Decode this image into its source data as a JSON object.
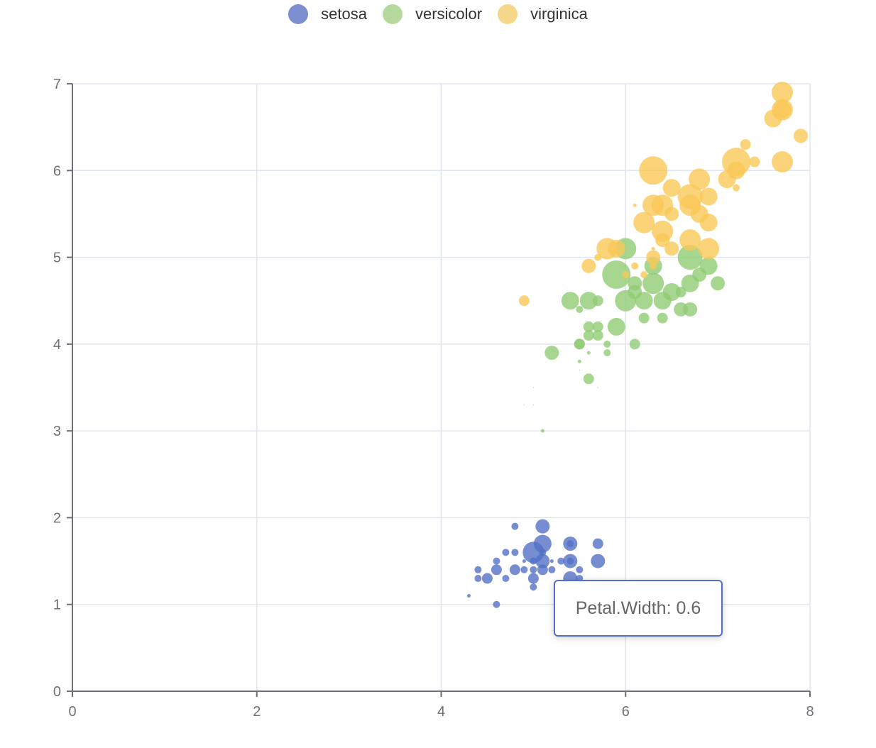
{
  "legend": {
    "items": [
      {
        "label": "setosa",
        "color": "#7d8fd0"
      },
      {
        "label": "versicolor",
        "color": "#b5d99c"
      },
      {
        "label": "virginica",
        "color": "#f6d68a"
      }
    ]
  },
  "tooltip": {
    "text": "Petal.Width: 0.6"
  },
  "chart_data": {
    "type": "scatter",
    "title": "",
    "xlabel": "",
    "ylabel": "",
    "xlim": [
      0,
      8
    ],
    "ylim": [
      0,
      7
    ],
    "x_ticks": [
      "0",
      "2",
      "4",
      "6",
      "8"
    ],
    "y_ticks": [
      "0",
      "1",
      "2",
      "3",
      "4",
      "5",
      "6",
      "7"
    ],
    "grid": true,
    "legend_position": "top-center",
    "size_dimension": "Petal.Width",
    "series": [
      {
        "name": "setosa",
        "color": "#5470c6",
        "points": [
          [
            4.3,
            1.1,
            0.1
          ],
          [
            4.4,
            1.3,
            0.2
          ],
          [
            4.4,
            1.4,
            0.2
          ],
          [
            4.5,
            1.3,
            0.3
          ],
          [
            4.6,
            1.0,
            0.2
          ],
          [
            4.6,
            1.4,
            0.3
          ],
          [
            4.6,
            1.5,
            0.2
          ],
          [
            4.7,
            1.3,
            0.2
          ],
          [
            4.7,
            1.6,
            0.2
          ],
          [
            4.8,
            1.4,
            0.3
          ],
          [
            4.8,
            1.6,
            0.2
          ],
          [
            4.8,
            1.9,
            0.2
          ],
          [
            4.9,
            1.4,
            0.2
          ],
          [
            4.9,
            1.5,
            0.1
          ],
          [
            5.0,
            1.2,
            0.2
          ],
          [
            5.0,
            1.3,
            0.3
          ],
          [
            5.0,
            1.4,
            0.2
          ],
          [
            5.0,
            1.6,
            0.6
          ],
          [
            5.0,
            1.5,
            0.2
          ],
          [
            5.1,
            1.4,
            0.3
          ],
          [
            5.1,
            1.5,
            0.4
          ],
          [
            5.1,
            1.7,
            0.5
          ],
          [
            5.1,
            1.9,
            0.4
          ],
          [
            5.1,
            1.6,
            0.2
          ],
          [
            5.2,
            1.4,
            0.2
          ],
          [
            5.2,
            1.5,
            0.1
          ],
          [
            5.3,
            1.5,
            0.2
          ],
          [
            5.4,
            1.3,
            0.4
          ],
          [
            5.4,
            1.5,
            0.4
          ],
          [
            5.4,
            1.7,
            0.4
          ],
          [
            5.4,
            1.7,
            0.2
          ],
          [
            5.4,
            1.5,
            0.2
          ],
          [
            5.5,
            1.3,
            0.2
          ],
          [
            5.5,
            1.4,
            0.2
          ],
          [
            5.7,
            1.5,
            0.4
          ],
          [
            5.7,
            1.7,
            0.3
          ],
          [
            5.8,
            1.2,
            0.2
          ]
        ]
      },
      {
        "name": "versicolor",
        "color": "#91cc75",
        "points": [
          [
            4.9,
            3.3,
            0.0
          ],
          [
            5.0,
            3.3,
            0.0
          ],
          [
            5.0,
            3.5,
            0.0
          ],
          [
            5.1,
            3.0,
            0.1
          ],
          [
            5.5,
            3.7,
            0.0
          ],
          [
            5.5,
            3.8,
            0.1
          ],
          [
            5.2,
            3.9,
            0.4
          ],
          [
            5.6,
            3.6,
            0.3
          ],
          [
            5.7,
            3.5,
            0.0
          ],
          [
            5.8,
            3.9,
            0.2
          ],
          [
            5.5,
            4.0,
            0.3
          ],
          [
            5.5,
            4.0,
            0.3
          ],
          [
            5.6,
            3.9,
            0.1
          ],
          [
            5.8,
            4.0,
            0.2
          ],
          [
            6.1,
            4.0,
            0.3
          ],
          [
            5.6,
            4.1,
            0.3
          ],
          [
            5.7,
            4.1,
            0.3
          ],
          [
            5.6,
            4.2,
            0.3
          ],
          [
            5.7,
            4.2,
            0.3
          ],
          [
            5.9,
            4.2,
            0.5
          ],
          [
            6.2,
            4.3,
            0.3
          ],
          [
            6.4,
            4.3,
            0.3
          ],
          [
            5.5,
            4.4,
            0.2
          ],
          [
            6.6,
            4.4,
            0.4
          ],
          [
            6.7,
            4.4,
            0.4
          ],
          [
            5.4,
            4.5,
            0.5
          ],
          [
            5.6,
            4.5,
            0.5
          ],
          [
            5.7,
            4.5,
            0.3
          ],
          [
            6.0,
            4.5,
            0.6
          ],
          [
            6.2,
            4.5,
            0.5
          ],
          [
            6.4,
            4.5,
            0.5
          ],
          [
            6.1,
            4.6,
            0.4
          ],
          [
            6.5,
            4.6,
            0.5
          ],
          [
            6.6,
            4.6,
            0.3
          ],
          [
            6.1,
            4.7,
            0.4
          ],
          [
            6.3,
            4.7,
            0.6
          ],
          [
            6.7,
            4.7,
            0.5
          ],
          [
            7.0,
            4.7,
            0.4
          ],
          [
            5.9,
            4.8,
            0.8
          ],
          [
            6.8,
            4.8,
            0.4
          ],
          [
            6.3,
            4.9,
            0.5
          ],
          [
            6.9,
            4.9,
            0.5
          ],
          [
            6.7,
            5.0,
            0.7
          ],
          [
            6.0,
            5.1,
            0.6
          ]
        ]
      },
      {
        "name": "virginica",
        "color": "#fac858",
        "points": [
          [
            4.9,
            4.5,
            0.3
          ],
          [
            5.6,
            4.9,
            0.4
          ],
          [
            5.7,
            5.0,
            0.2
          ],
          [
            6.0,
            4.8,
            0.2
          ],
          [
            6.2,
            4.8,
            0.2
          ],
          [
            6.1,
            4.9,
            0.2
          ],
          [
            6.3,
            4.9,
            0.2
          ],
          [
            6.3,
            5.0,
            0.4
          ],
          [
            6.3,
            5.1,
            0.1
          ],
          [
            5.8,
            5.1,
            0.6
          ],
          [
            5.9,
            5.1,
            0.5
          ],
          [
            6.5,
            5.1,
            0.4
          ],
          [
            6.9,
            5.1,
            0.6
          ],
          [
            6.4,
            5.2,
            0.4
          ],
          [
            6.7,
            5.2,
            0.6
          ],
          [
            6.4,
            5.3,
            0.6
          ],
          [
            6.2,
            5.4,
            0.6
          ],
          [
            6.9,
            5.4,
            0.5
          ],
          [
            6.5,
            5.5,
            0.4
          ],
          [
            6.8,
            5.5,
            0.5
          ],
          [
            6.1,
            5.6,
            0.1
          ],
          [
            6.3,
            5.6,
            0.6
          ],
          [
            6.4,
            5.6,
            0.6
          ],
          [
            6.7,
            5.6,
            0.6
          ],
          [
            6.7,
            5.7,
            0.7
          ],
          [
            6.9,
            5.7,
            0.5
          ],
          [
            7.2,
            5.8,
            0.2
          ],
          [
            6.5,
            5.8,
            0.5
          ],
          [
            6.8,
            5.9,
            0.6
          ],
          [
            7.1,
            5.9,
            0.5
          ],
          [
            6.3,
            6.0,
            0.8
          ],
          [
            7.2,
            6.0,
            0.5
          ],
          [
            7.2,
            6.1,
            0.8
          ],
          [
            7.4,
            6.1,
            0.3
          ],
          [
            7.7,
            6.1,
            0.6
          ],
          [
            7.3,
            6.3,
            0.3
          ],
          [
            7.9,
            6.4,
            0.4
          ],
          [
            7.6,
            6.6,
            0.5
          ],
          [
            7.7,
            6.7,
            0.5
          ],
          [
            7.7,
            6.7,
            0.6
          ],
          [
            7.7,
            6.9,
            0.6
          ]
        ]
      }
    ]
  }
}
